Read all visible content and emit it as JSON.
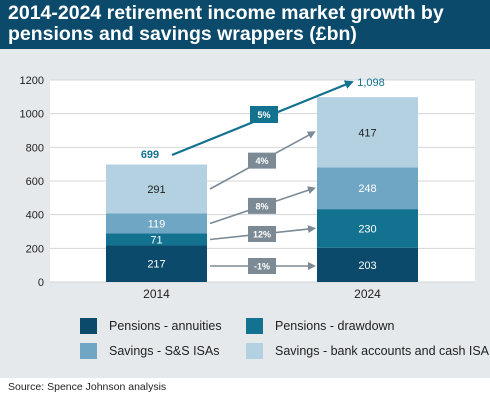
{
  "header": {
    "title": "2014-2024 retirement income market growth by pensions and savings wrappers  (£bn)"
  },
  "source": "Source: Spence Johnson analysis",
  "colors": {
    "header_bg": "#0b4a6b",
    "panel_bg": "#e6e9ec",
    "annuities": "#0b4a6b",
    "drawdown": "#13728f",
    "ssisas": "#6ea6c4",
    "bank": "#b3d1e1",
    "growth_badge": "#7b8a94",
    "total_badge": "#13728f",
    "total_text": "#13728f"
  },
  "chart_data": {
    "type": "bar",
    "stacked": true,
    "categories": [
      "2014",
      "2024"
    ],
    "ylim": [
      0,
      1200
    ],
    "yticks": [
      0,
      200,
      400,
      600,
      800,
      1000,
      1200
    ],
    "series": [
      {
        "name": "Pensions - annuities",
        "values": [
          217,
          203
        ],
        "growth": "-1%"
      },
      {
        "name": "Pensions - drawdown",
        "values": [
          71,
          230
        ],
        "growth": "12%"
      },
      {
        "name": "Savings - S&S ISAs",
        "values": [
          119,
          248
        ],
        "growth": "8%"
      },
      {
        "name": "Savings - bank accounts and cash ISA",
        "values": [
          291,
          417
        ],
        "growth": "4%"
      }
    ],
    "totals": [
      "699",
      "1,098"
    ],
    "total_growth": "5%"
  }
}
